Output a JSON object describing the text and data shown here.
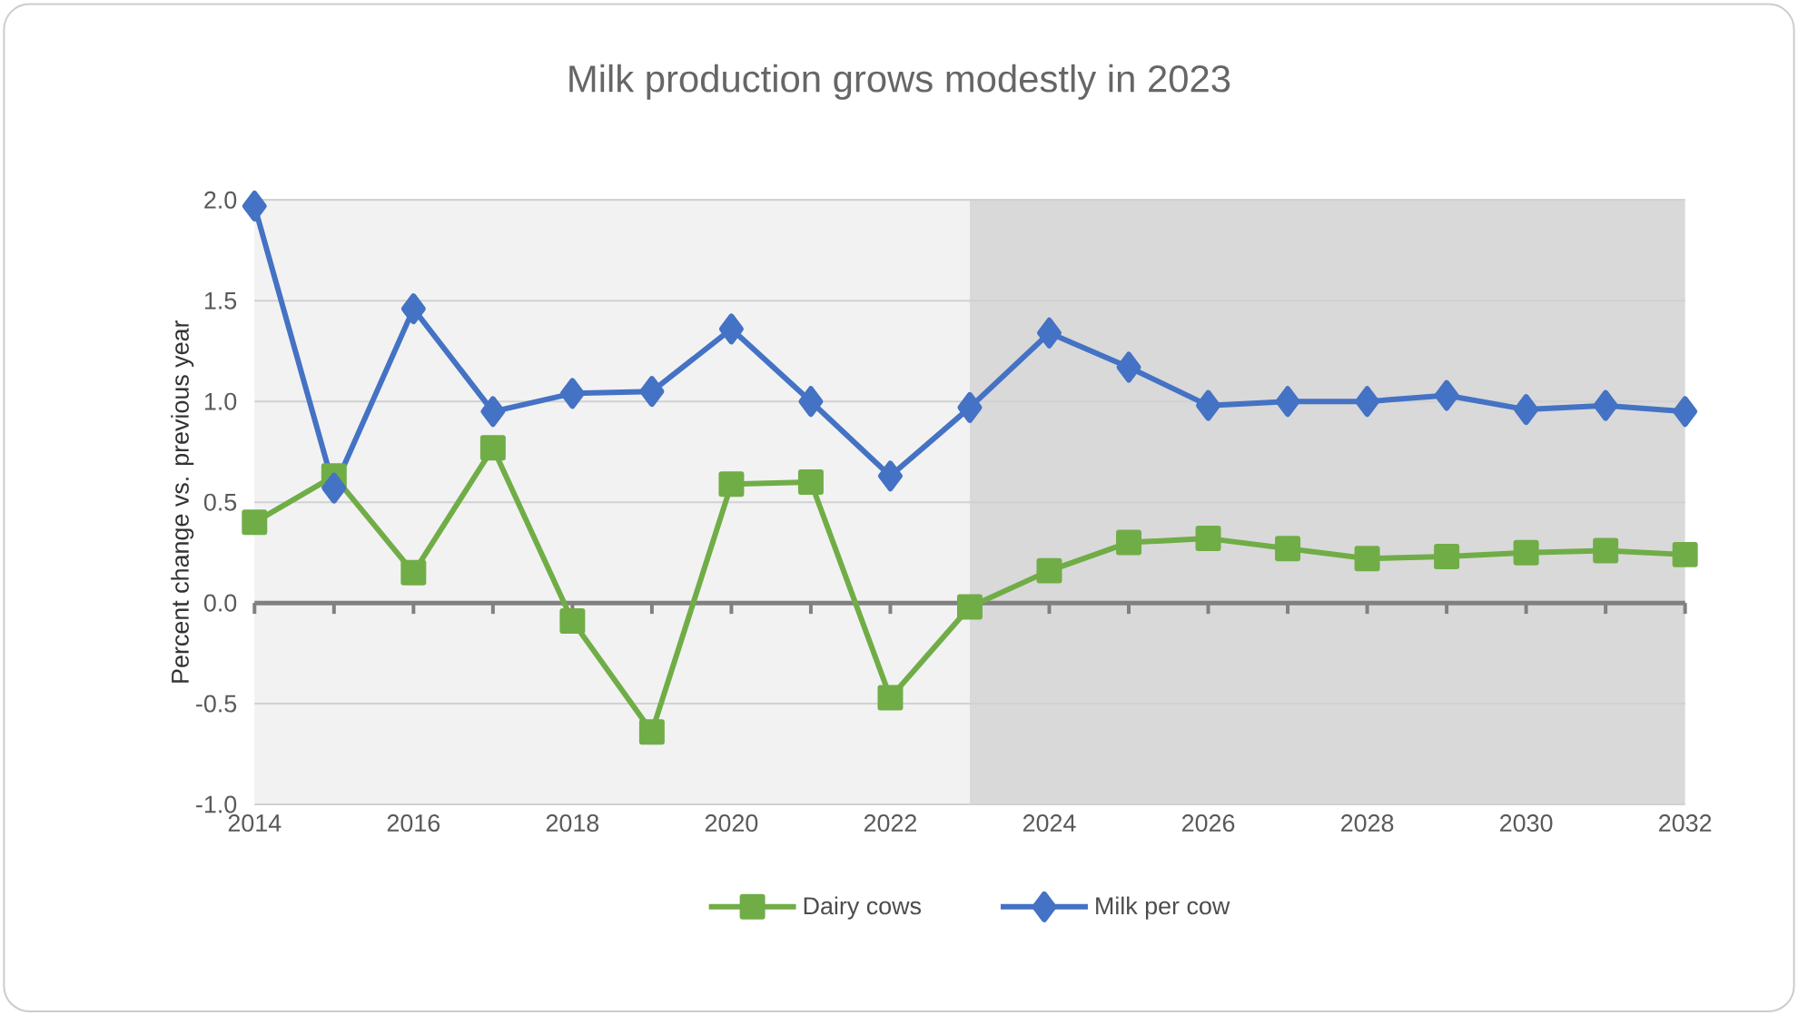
{
  "chart_data": {
    "type": "line",
    "title": "Milk production grows modestly in 2023",
    "ylabel": "Percent change vs. previous year",
    "x": [
      2014,
      2015,
      2016,
      2017,
      2018,
      2019,
      2020,
      2021,
      2022,
      2023,
      2024,
      2025,
      2026,
      2027,
      2028,
      2029,
      2030,
      2031,
      2032
    ],
    "series": [
      {
        "name": "Dairy cows",
        "color": "#70ad47",
        "marker": "square",
        "values": [
          0.4,
          0.63,
          0.15,
          0.77,
          -0.09,
          -0.64,
          0.59,
          0.6,
          -0.47,
          -0.02,
          0.16,
          0.3,
          0.32,
          0.27,
          0.22,
          0.23,
          0.25,
          0.26,
          0.24
        ]
      },
      {
        "name": "Milk per cow",
        "color": "#4472c4",
        "marker": "diamond",
        "values": [
          1.97,
          0.57,
          1.46,
          0.95,
          1.04,
          1.05,
          1.36,
          1.0,
          0.63,
          0.97,
          1.34,
          1.17,
          0.98,
          1.0,
          1.0,
          1.03,
          0.96,
          0.98,
          0.95
        ]
      }
    ],
    "xlim": [
      2014,
      2032
    ],
    "xticks": [
      2014,
      {
        "value": 2015,
        "label": null
      },
      2016,
      {
        "value": 2017,
        "label": null
      },
      2018,
      {
        "value": 2019,
        "label": null
      },
      2020,
      {
        "value": 2021,
        "label": null
      },
      2022,
      {
        "value": 2023,
        "label": null
      },
      2024,
      {
        "value": 2025,
        "label": null
      },
      2026,
      {
        "value": 2027,
        "label": null
      },
      2028,
      {
        "value": 2029,
        "label": null
      },
      2030,
      {
        "value": 2031,
        "label": null
      },
      2032
    ],
    "ylim": [
      -1.0,
      2.0
    ],
    "yticks": [
      {
        "value": -1.0,
        "label": "-1.0"
      },
      {
        "value": -0.5,
        "label": "-0.5"
      },
      {
        "value": 0,
        "label": "0.0"
      },
      {
        "value": 0.5,
        "label": "0.5"
      },
      {
        "value": 1.0,
        "label": "1.0"
      },
      {
        "value": 1.5,
        "label": "1.5"
      },
      {
        "value": 2.0,
        "label": "2.0"
      }
    ],
    "bands": [
      {
        "axis": "x",
        "from": 2014,
        "to": 2023,
        "color": "#f2f2f2"
      },
      {
        "axis": "x",
        "from": 2023,
        "to": 2032,
        "color": "#d9d9d9"
      }
    ],
    "grid": "y",
    "legend": "bottom"
  }
}
